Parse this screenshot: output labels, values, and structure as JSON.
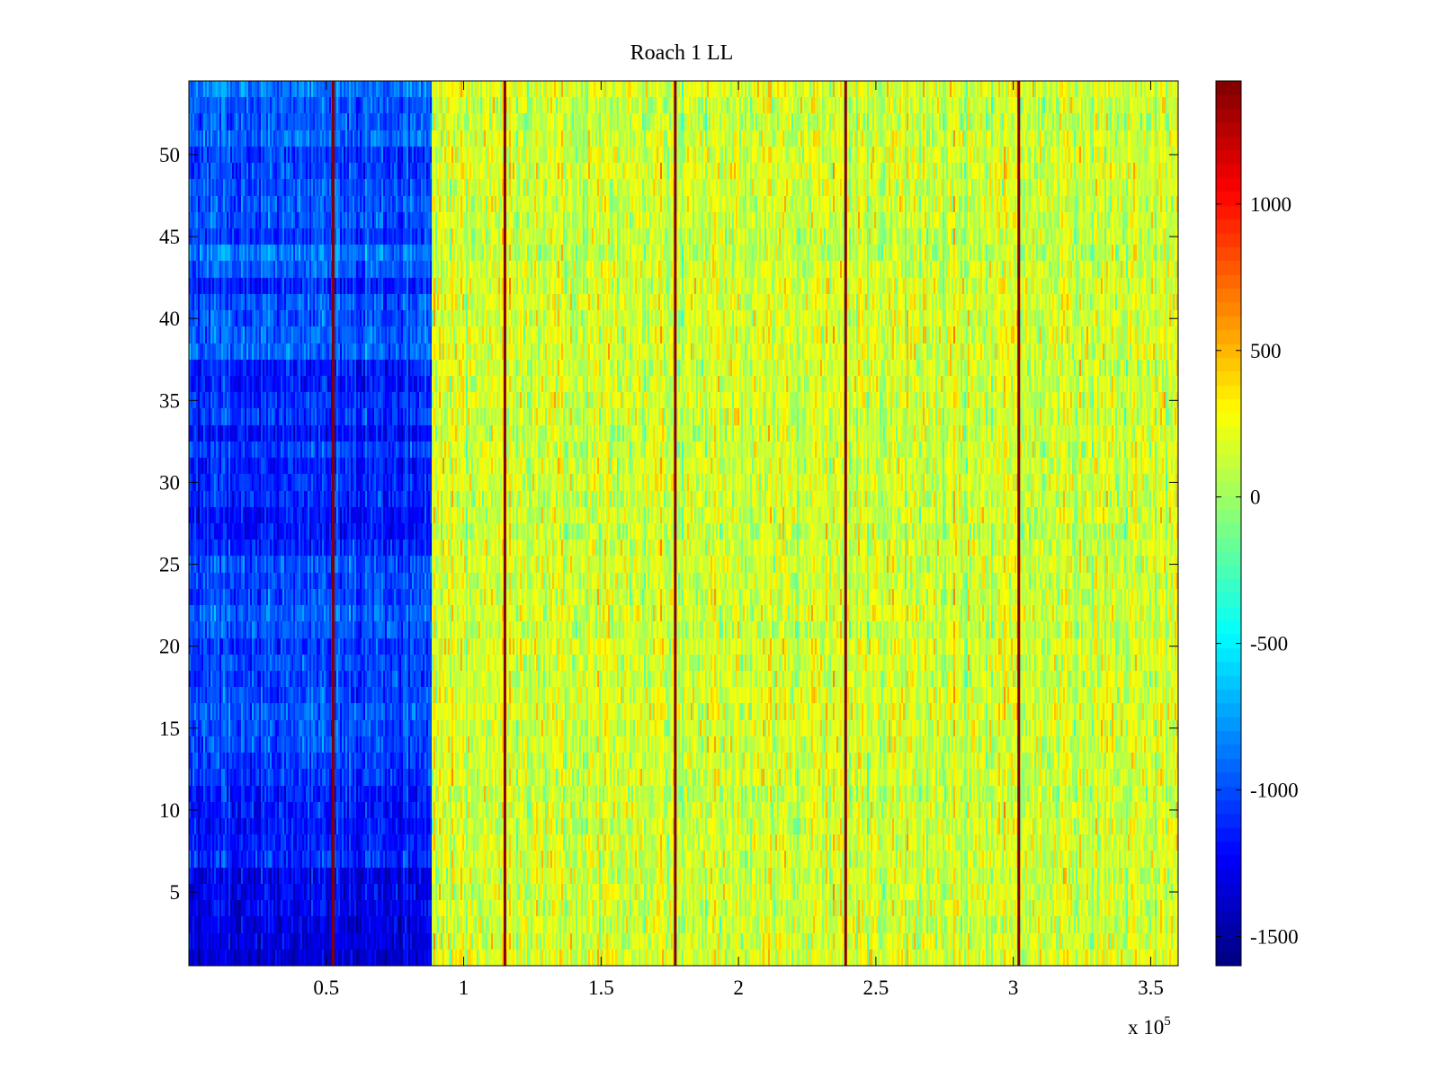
{
  "chart_data": {
    "type": "heatmap",
    "title": "Roach 1 LL",
    "xlabel": "",
    "ylabel": "",
    "x_multiplier_label": "x 10",
    "x_multiplier_exponent": "5",
    "xlim": [
      0,
      3.6
    ],
    "ylim": [
      0.5,
      54.5
    ],
    "x_ticks": [
      0.5,
      1,
      1.5,
      2,
      2.5,
      3,
      3.5
    ],
    "x_tick_labels": [
      "0.5",
      "1",
      "1.5",
      "2",
      "2.5",
      "3",
      "3.5"
    ],
    "y_ticks": [
      5,
      10,
      15,
      20,
      25,
      30,
      35,
      40,
      45,
      50
    ],
    "y_tick_labels": [
      "5",
      "10",
      "15",
      "20",
      "25",
      "30",
      "35",
      "40",
      "45",
      "50"
    ],
    "rows": 54,
    "colormap": "jet",
    "clim": [
      -1600,
      1420
    ],
    "colorbar_ticks": [
      -1500,
      -1000,
      -500,
      0,
      500,
      1000
    ],
    "colorbar_tick_labels": [
      "-1500",
      "-1000",
      "-500",
      "0",
      "500",
      "1000"
    ],
    "regions": [
      {
        "x_start": 0,
        "x_end": 0.88,
        "mean_value": -1000,
        "note": "low band"
      },
      {
        "x_start": 0.88,
        "x_end": 3.6,
        "mean_value": 150,
        "note": "high band"
      }
    ],
    "vertical_lines": [
      {
        "x": 0.525,
        "value": 1400
      },
      {
        "x": 1.15,
        "value": 1400
      },
      {
        "x": 1.77,
        "value": 1400
      },
      {
        "x": 2.39,
        "value": 1400
      },
      {
        "x": 3.02,
        "value": 1400
      }
    ],
    "grid": false,
    "colorbar": "right"
  }
}
